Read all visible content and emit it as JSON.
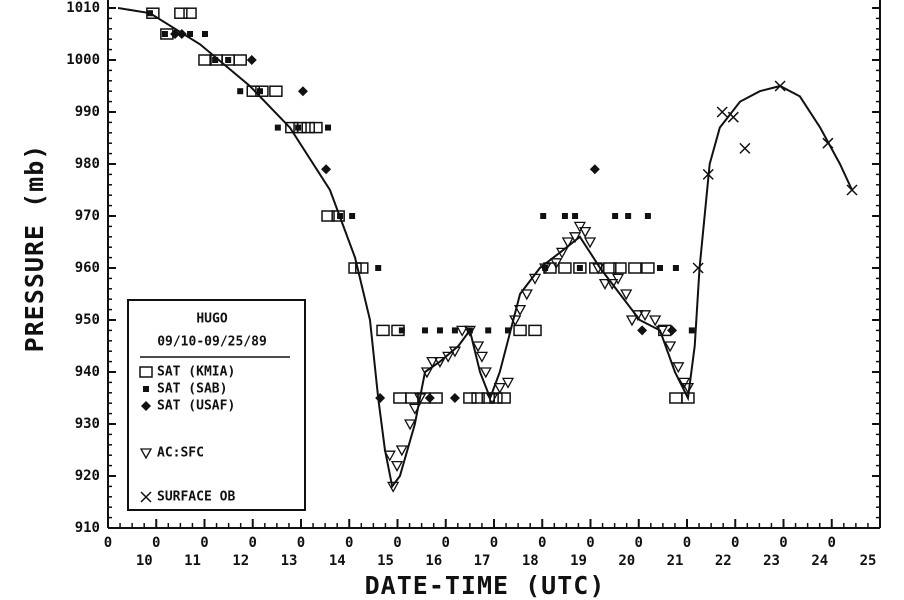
{
  "chart_data": {
    "type": "scatter",
    "x_label": "DATE-TIME (UTC)",
    "y_label": "PRESSURE (mb)",
    "xlim": [
      9,
      25
    ],
    "ylim": [
      910,
      1010
    ],
    "yticks": [
      910,
      920,
      930,
      940,
      950,
      960,
      970,
      980,
      990,
      1000,
      1010
    ],
    "xticks": [
      {
        "value": 9,
        "label": "0"
      },
      {
        "value": 10,
        "label": "0"
      },
      {
        "value": 11,
        "label": "0"
      },
      {
        "value": 12,
        "label": "0"
      },
      {
        "value": 13,
        "label": "0"
      },
      {
        "value": 14,
        "label": "0"
      },
      {
        "value": 15,
        "label": "0"
      },
      {
        "value": 16,
        "label": "0"
      },
      {
        "value": 17,
        "label": "0"
      },
      {
        "value": 18,
        "label": "0"
      },
      {
        "value": 19,
        "label": "0"
      },
      {
        "value": 20,
        "label": "0"
      },
      {
        "value": 21,
        "label": "0"
      },
      {
        "value": 22,
        "label": "0"
      },
      {
        "value": 23,
        "label": "0"
      },
      {
        "value": 24,
        "label": "0"
      }
    ],
    "xtick_days": [
      10,
      11,
      12,
      13,
      14,
      15,
      16,
      17,
      18,
      19,
      20,
      21,
      22,
      23,
      24,
      25
    ],
    "legend_title": "HUGO",
    "legend_subtitle": "09/10-09/25/89",
    "legend": "lower left",
    "series": [
      {
        "name": "SAT (KMIA)",
        "marker": "open-square",
        "color": "#111",
        "x": [
          9.93,
          10.22,
          10.51,
          10.7,
          11.01,
          11.24,
          11.49,
          11.74,
          12.01,
          12.19,
          12.48,
          12.81,
          12.98,
          13.15,
          13.31,
          13.56,
          13.77,
          14.12,
          14.26,
          14.7,
          15.01,
          15.05,
          15.3,
          15.55,
          15.8,
          16.5,
          16.67,
          16.88,
          17.04,
          17.21,
          17.54,
          17.85,
          18.16,
          18.47,
          18.78,
          19.11,
          19.4,
          19.61,
          19.92,
          20.19,
          20.54,
          20.77,
          21.02
        ],
        "values": [
          1009,
          1005,
          1009,
          1009,
          1000,
          1000,
          1000,
          1000,
          994,
          994,
          994,
          987,
          987,
          987,
          987,
          970,
          970,
          960,
          960,
          948,
          948,
          935,
          935,
          935,
          935,
          935,
          935,
          935,
          935,
          935,
          948,
          948,
          960,
          960,
          960,
          960,
          960,
          960,
          960,
          960,
          948,
          935,
          935
        ]
      },
      {
        "name": "SAT (SAB)",
        "marker": "filled-square",
        "color": "#111",
        "x": [
          9.87,
          10.18,
          10.7,
          11.01,
          11.22,
          11.49,
          11.74,
          12.15,
          12.52,
          12.94,
          13.56,
          13.81,
          14.06,
          14.6,
          15.09,
          15.57,
          15.88,
          16.19,
          16.5,
          16.88,
          17.29,
          18.02,
          18.06,
          18.47,
          18.68,
          18.78,
          19.51,
          19.78,
          20.19,
          20.44,
          20.77,
          21.1
        ],
        "values": [
          1009,
          1005,
          1005,
          1005,
          1000,
          1000,
          994,
          994,
          987,
          987,
          987,
          970,
          970,
          960,
          948,
          948,
          948,
          948,
          948,
          948,
          948,
          970,
          960,
          970,
          970,
          960,
          970,
          970,
          970,
          960,
          960,
          948
        ]
      },
      {
        "name": "SAT (USAF)",
        "marker": "diamond",
        "color": "#111",
        "x": [
          10.39,
          10.53,
          11.98,
          13.04,
          13.52,
          14.64,
          15.67,
          16.19,
          19.09,
          20.07,
          20.69
        ],
        "values": [
          1005,
          1005,
          1000,
          994,
          979,
          935,
          935,
          935,
          979,
          948,
          948
        ]
      },
      {
        "name": "AC:SFC",
        "marker": "triangle-down",
        "color": "#111",
        "x": [
          14.84,
          14.91,
          14.99,
          15.09,
          15.26,
          15.36,
          15.47,
          15.61,
          15.72,
          15.88,
          16.05,
          16.19,
          16.34,
          16.5,
          16.67,
          16.75,
          16.83,
          16.96,
          17.12,
          17.29,
          17.44,
          17.54,
          17.68,
          17.85,
          18.06,
          18.29,
          18.41,
          18.53,
          18.68,
          18.78,
          18.89,
          18.99,
          19.16,
          19.3,
          19.45,
          19.57,
          19.74,
          19.86,
          19.98,
          20.13,
          20.34,
          20.48,
          20.65,
          20.82,
          20.94,
          21.02
        ],
        "values": [
          924,
          918,
          922,
          925,
          930,
          933,
          935,
          940,
          942,
          942,
          943,
          944,
          948,
          948,
          945,
          943,
          940,
          935,
          937,
          938,
          950,
          952,
          955,
          958,
          960,
          961,
          963,
          965,
          966,
          968,
          967,
          965,
          960,
          957,
          957,
          958,
          955,
          950,
          951,
          951,
          950,
          948,
          945,
          941,
          938,
          937
        ]
      },
      {
        "name": "SURFACE OB",
        "marker": "x",
        "color": "#111",
        "x": [
          21.23,
          21.44,
          21.73,
          21.96,
          22.2,
          22.93,
          23.92,
          24.42
        ],
        "values": [
          960,
          978,
          990,
          989,
          983,
          995,
          984,
          975
        ]
      },
      {
        "marker": "line",
        "color": "#111",
        "x": [
          9.21,
          9.87,
          10.91,
          11.94,
          12.77,
          13.6,
          14.12,
          14.43,
          14.6,
          14.74,
          14.89,
          15.05,
          15.36,
          15.57,
          15.88,
          16.26,
          16.5,
          16.71,
          16.92,
          17.12,
          17.54,
          17.95,
          18.37,
          18.78,
          19.2,
          19.61,
          20.02,
          20.44,
          20.75,
          21.02,
          21.16,
          21.26,
          21.47,
          21.68,
          22.1,
          22.51,
          22.93,
          23.34,
          23.76,
          24.17,
          24.42
        ],
        "values": [
          1010,
          1009,
          1003,
          995,
          987,
          975,
          962,
          950,
          935,
          925,
          918,
          920,
          930,
          940,
          942,
          945,
          948,
          940,
          935,
          940,
          955,
          960,
          963,
          966,
          960,
          955,
          950,
          948,
          940,
          935,
          945,
          960,
          980,
          987,
          992,
          994,
          995,
          993,
          987,
          980,
          975
        ]
      }
    ]
  }
}
